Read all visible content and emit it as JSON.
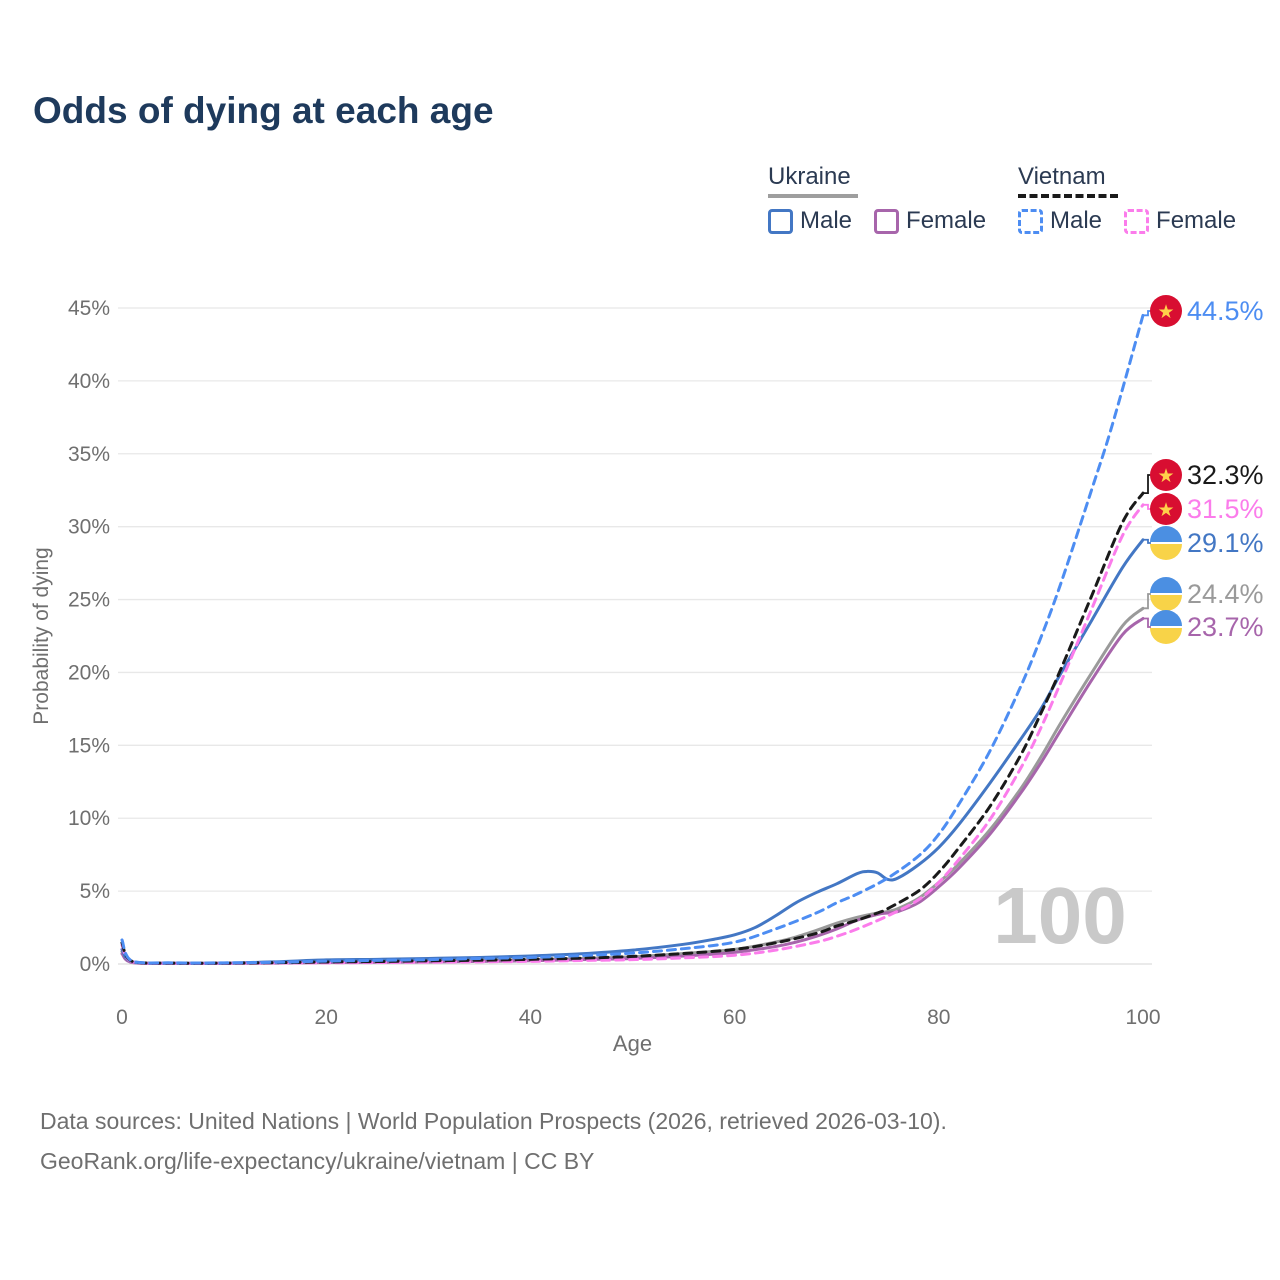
{
  "title": "Odds of dying at each age",
  "legend": {
    "groups": [
      {
        "id": "ukraine",
        "label": "Ukraine",
        "line_style": "solid",
        "line_color": "#9e9e9e",
        "items": [
          {
            "id": "ukraine-male",
            "label": "Male",
            "color": "#4377c4",
            "dashed": false
          },
          {
            "id": "ukraine-female",
            "label": "Female",
            "color": "#a765ab",
            "dashed": false
          }
        ]
      },
      {
        "id": "vietnam",
        "label": "Vietnam",
        "line_style": "dashed",
        "line_color": "#1a1a1a",
        "items": [
          {
            "id": "vietnam-male",
            "label": "Male",
            "color": "#4d8df2",
            "dashed": true
          },
          {
            "id": "vietnam-female",
            "label": "Female",
            "color": "#fb7ceb",
            "dashed": true
          }
        ]
      }
    ]
  },
  "chart_data": {
    "type": "line",
    "title": "Odds of dying at each age",
    "xlabel": "Age",
    "ylabel": "Probability of dying",
    "xlim": [
      0,
      100
    ],
    "ylim": [
      0,
      45
    ],
    "x_ticks": [
      0,
      20,
      40,
      60,
      80,
      100
    ],
    "y_ticks": [
      0,
      5,
      10,
      15,
      20,
      25,
      30,
      35,
      40,
      45
    ],
    "y_tick_suffix": "%",
    "grid": "horizontal",
    "watermark": "100",
    "colors": {
      "grid": "#e8e8e8",
      "axis_text": "#6f6f6f",
      "watermark": "#c9c9c9",
      "vietnam_flag_red": "#d80e31",
      "vietnam_flag_star": "#ffd04a",
      "ukraine_flag_blue": "#4b8fe2",
      "ukraine_flag_yellow": "#f8d348"
    },
    "series": [
      {
        "id": "ukraine-total",
        "name": "Ukraine",
        "sex": "Both",
        "color": "#9a9a9a",
        "dashed": false,
        "flag": "ukraine",
        "end_label": "24.4%",
        "label_color": "#9a9a9a",
        "points": [
          [
            0,
            0.85
          ],
          [
            1,
            0.12
          ],
          [
            5,
            0.05
          ],
          [
            10,
            0.05
          ],
          [
            15,
            0.08
          ],
          [
            20,
            0.15
          ],
          [
            25,
            0.18
          ],
          [
            30,
            0.2
          ],
          [
            35,
            0.25
          ],
          [
            40,
            0.3
          ],
          [
            45,
            0.38
          ],
          [
            50,
            0.5
          ],
          [
            55,
            0.72
          ],
          [
            60,
            1.0
          ],
          [
            64,
            1.5
          ],
          [
            66,
            1.85
          ],
          [
            68,
            2.3
          ],
          [
            70,
            2.8
          ],
          [
            72,
            3.2
          ],
          [
            74,
            3.5
          ],
          [
            75,
            3.6
          ],
          [
            76,
            3.8
          ],
          [
            78,
            4.5
          ],
          [
            80,
            5.6
          ],
          [
            82,
            6.9
          ],
          [
            85,
            9.2
          ],
          [
            88,
            12.0
          ],
          [
            90,
            14.2
          ],
          [
            92,
            16.6
          ],
          [
            95,
            20.0
          ],
          [
            98,
            23.2
          ],
          [
            100,
            24.4
          ]
        ]
      },
      {
        "id": "ukraine-female",
        "name": "Ukraine",
        "sex": "Female",
        "color": "#a765ab",
        "dashed": false,
        "flag": "ukraine",
        "end_label": "23.7%",
        "label_color": "#a765ab",
        "points": [
          [
            0,
            0.7
          ],
          [
            1,
            0.1
          ],
          [
            5,
            0.04
          ],
          [
            10,
            0.04
          ],
          [
            15,
            0.06
          ],
          [
            20,
            0.1
          ],
          [
            25,
            0.12
          ],
          [
            30,
            0.14
          ],
          [
            35,
            0.18
          ],
          [
            40,
            0.22
          ],
          [
            45,
            0.3
          ],
          [
            50,
            0.38
          ],
          [
            55,
            0.55
          ],
          [
            60,
            0.8
          ],
          [
            64,
            1.2
          ],
          [
            66,
            1.5
          ],
          [
            68,
            1.9
          ],
          [
            70,
            2.4
          ],
          [
            72,
            3.0
          ],
          [
            74,
            3.4
          ],
          [
            75,
            3.5
          ],
          [
            76,
            3.6
          ],
          [
            78,
            4.2
          ],
          [
            80,
            5.3
          ],
          [
            82,
            6.6
          ],
          [
            85,
            8.9
          ],
          [
            88,
            11.7
          ],
          [
            90,
            13.8
          ],
          [
            92,
            16.1
          ],
          [
            95,
            19.5
          ],
          [
            98,
            22.6
          ],
          [
            100,
            23.7
          ]
        ]
      },
      {
        "id": "ukraine-male",
        "name": "Ukraine",
        "sex": "Male",
        "color": "#4377c4",
        "dashed": false,
        "flag": "ukraine",
        "end_label": "29.1%",
        "label_color": "#4377c4",
        "points": [
          [
            0,
            1.0
          ],
          [
            1,
            0.15
          ],
          [
            5,
            0.06
          ],
          [
            10,
            0.06
          ],
          [
            15,
            0.15
          ],
          [
            20,
            0.28
          ],
          [
            25,
            0.32
          ],
          [
            30,
            0.38
          ],
          [
            35,
            0.45
          ],
          [
            40,
            0.55
          ],
          [
            45,
            0.7
          ],
          [
            50,
            0.95
          ],
          [
            55,
            1.35
          ],
          [
            58,
            1.7
          ],
          [
            60,
            2.0
          ],
          [
            62,
            2.5
          ],
          [
            64,
            3.3
          ],
          [
            66,
            4.2
          ],
          [
            68,
            4.9
          ],
          [
            70,
            5.5
          ],
          [
            72,
            6.2
          ],
          [
            73,
            6.35
          ],
          [
            74,
            6.25
          ],
          [
            75,
            5.8
          ],
          [
            76,
            5.9
          ],
          [
            78,
            6.8
          ],
          [
            80,
            8.0
          ],
          [
            82,
            9.6
          ],
          [
            85,
            12.4
          ],
          [
            88,
            15.4
          ],
          [
            90,
            17.5
          ],
          [
            92,
            20.0
          ],
          [
            95,
            23.6
          ],
          [
            98,
            27.2
          ],
          [
            100,
            29.1
          ]
        ]
      },
      {
        "id": "vietnam-female",
        "name": "Vietnam",
        "sex": "Female",
        "color": "#fb7ceb",
        "dashed": true,
        "flag": "vietnam",
        "end_label": "31.5%",
        "label_color": "#fb7ceb",
        "points": [
          [
            0,
            1.3
          ],
          [
            1,
            0.15
          ],
          [
            5,
            0.05
          ],
          [
            10,
            0.05
          ],
          [
            15,
            0.07
          ],
          [
            20,
            0.08
          ],
          [
            25,
            0.1
          ],
          [
            30,
            0.12
          ],
          [
            35,
            0.15
          ],
          [
            40,
            0.18
          ],
          [
            45,
            0.24
          ],
          [
            50,
            0.3
          ],
          [
            55,
            0.42
          ],
          [
            60,
            0.6
          ],
          [
            64,
            0.95
          ],
          [
            68,
            1.5
          ],
          [
            70,
            1.9
          ],
          [
            72,
            2.4
          ],
          [
            75,
            3.3
          ],
          [
            78,
            4.4
          ],
          [
            80,
            5.6
          ],
          [
            82,
            7.2
          ],
          [
            85,
            9.9
          ],
          [
            88,
            13.4
          ],
          [
            90,
            16.2
          ],
          [
            92,
            19.4
          ],
          [
            95,
            24.4
          ],
          [
            98,
            29.4
          ],
          [
            100,
            31.5
          ]
        ]
      },
      {
        "id": "vietnam-total",
        "name": "Vietnam",
        "sex": "Both",
        "color": "#1a1a1a",
        "dashed": true,
        "flag": "vietnam",
        "end_label": "32.3%",
        "label_color": "#1a1a1a",
        "points": [
          [
            0,
            1.45
          ],
          [
            1,
            0.18
          ],
          [
            5,
            0.06
          ],
          [
            10,
            0.06
          ],
          [
            15,
            0.09
          ],
          [
            20,
            0.14
          ],
          [
            25,
            0.17
          ],
          [
            30,
            0.22
          ],
          [
            35,
            0.26
          ],
          [
            40,
            0.32
          ],
          [
            45,
            0.4
          ],
          [
            50,
            0.52
          ],
          [
            55,
            0.72
          ],
          [
            60,
            1.0
          ],
          [
            64,
            1.45
          ],
          [
            68,
            2.1
          ],
          [
            70,
            2.6
          ],
          [
            72,
            3.0
          ],
          [
            74,
            3.5
          ],
          [
            75,
            3.8
          ],
          [
            78,
            5.0
          ],
          [
            80,
            6.3
          ],
          [
            82,
            8.0
          ],
          [
            85,
            10.8
          ],
          [
            88,
            14.3
          ],
          [
            90,
            17.2
          ],
          [
            92,
            20.3
          ],
          [
            95,
            25.3
          ],
          [
            98,
            30.3
          ],
          [
            100,
            32.3
          ]
        ]
      },
      {
        "id": "vietnam-male",
        "name": "Vietnam",
        "sex": "Male",
        "color": "#4d8df2",
        "dashed": true,
        "flag": "vietnam",
        "end_label": "44.5%",
        "label_color": "#4d8df2",
        "points": [
          [
            0,
            1.65
          ],
          [
            1,
            0.2
          ],
          [
            5,
            0.08
          ],
          [
            10,
            0.08
          ],
          [
            15,
            0.12
          ],
          [
            20,
            0.2
          ],
          [
            25,
            0.25
          ],
          [
            30,
            0.3
          ],
          [
            35,
            0.38
          ],
          [
            40,
            0.45
          ],
          [
            45,
            0.58
          ],
          [
            50,
            0.75
          ],
          [
            55,
            1.05
          ],
          [
            60,
            1.5
          ],
          [
            64,
            2.4
          ],
          [
            68,
            3.5
          ],
          [
            70,
            4.2
          ],
          [
            72,
            4.8
          ],
          [
            75,
            5.9
          ],
          [
            78,
            7.4
          ],
          [
            80,
            8.9
          ],
          [
            82,
            11.0
          ],
          [
            85,
            14.6
          ],
          [
            88,
            19.0
          ],
          [
            90,
            22.4
          ],
          [
            92,
            26.2
          ],
          [
            95,
            32.6
          ],
          [
            97,
            37.0
          ],
          [
            100,
            44.5
          ]
        ]
      }
    ]
  },
  "footer": {
    "line1": "Data sources: United Nations | World Population Prospects (2026, retrieved 2026-03-10).",
    "line2": "GeoRank.org/life-expectancy/ukraine/vietnam | CC BY"
  }
}
